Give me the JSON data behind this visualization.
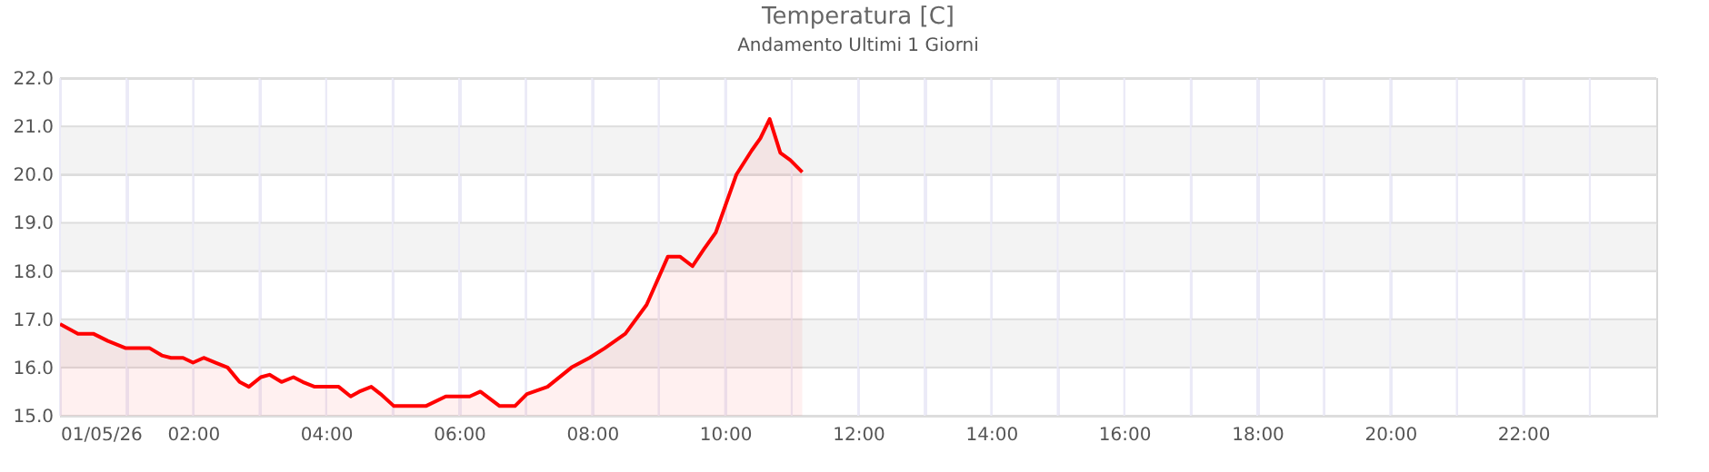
{
  "chart_data": {
    "type": "area",
    "title": "Temperatura [C]",
    "subtitle": "Andamento Ultimi 1 Giorni",
    "x": [
      0,
      0.27,
      0.5,
      0.72,
      0.99,
      1.35,
      1.53,
      1.67,
      1.85,
      2.0,
      2.16,
      2.34,
      2.52,
      2.7,
      2.84,
      3.02,
      3.15,
      3.33,
      3.51,
      3.65,
      3.83,
      4.19,
      4.37,
      4.5,
      4.68,
      4.82,
      5.02,
      5.5,
      5.8,
      6.16,
      6.32,
      6.61,
      6.84,
      7.02,
      7.33,
      7.69,
      7.96,
      8.19,
      8.5,
      8.82,
      9.14,
      9.32,
      9.51,
      9.68,
      9.86,
      10.17,
      10.4,
      10.53,
      10.67,
      10.83,
      10.98,
      11.16
    ],
    "series": [
      {
        "color": "#ff0000",
        "values": [
          16.9,
          16.7,
          16.7,
          16.55,
          16.4,
          16.4,
          16.25,
          16.2,
          16.2,
          16.1,
          16.2,
          16.1,
          16.0,
          15.7,
          15.6,
          15.8,
          15.85,
          15.7,
          15.8,
          15.7,
          15.6,
          15.6,
          15.4,
          15.5,
          15.6,
          15.45,
          15.2,
          15.2,
          15.4,
          15.4,
          15.5,
          15.2,
          15.2,
          15.45,
          15.6,
          16.0,
          16.2,
          16.4,
          16.7,
          17.3,
          18.3,
          18.3,
          18.1,
          18.45,
          18.8,
          20.0,
          20.5,
          20.75,
          21.15,
          20.45,
          20.3,
          20.05
        ]
      }
    ],
    "xlim": [
      0,
      24
    ],
    "xticks": [
      {
        "value": 0,
        "label": "01/05/26"
      },
      {
        "value": 1,
        "label": null
      },
      {
        "value": 2,
        "label": "02:00"
      },
      {
        "value": 3,
        "label": null
      },
      {
        "value": 4,
        "label": "04:00"
      },
      {
        "value": 5,
        "label": null
      },
      {
        "value": 6,
        "label": "06:00"
      },
      {
        "value": 7,
        "label": null
      },
      {
        "value": 8,
        "label": "08:00"
      },
      {
        "value": 9,
        "label": null
      },
      {
        "value": 10,
        "label": "10:00"
      },
      {
        "value": 11,
        "label": null
      },
      {
        "value": 12,
        "label": "12:00"
      },
      {
        "value": 13,
        "label": null
      },
      {
        "value": 14,
        "label": "14:00"
      },
      {
        "value": 15,
        "label": null
      },
      {
        "value": 16,
        "label": "16:00"
      },
      {
        "value": 17,
        "label": null
      },
      {
        "value": 18,
        "label": "18:00"
      },
      {
        "value": 19,
        "label": null
      },
      {
        "value": 20,
        "label": "20:00"
      },
      {
        "value": 21,
        "label": null
      },
      {
        "value": 22,
        "label": "22:00"
      },
      {
        "value": 23,
        "label": null
      }
    ],
    "ylim": [
      15,
      22
    ],
    "yticks": [
      {
        "value": 15,
        "label": "15.0"
      },
      {
        "value": 16,
        "label": "16.0"
      },
      {
        "value": 17,
        "label": "17.0"
      },
      {
        "value": 18,
        "label": "18.0"
      },
      {
        "value": 19,
        "label": "19.0"
      },
      {
        "value": 20,
        "label": "20.0"
      },
      {
        "value": 21,
        "label": "21.0"
      },
      {
        "value": 22,
        "label": "22.0"
      }
    ],
    "bands": [
      {
        "axis": "y",
        "from": 16,
        "to": 17,
        "color": "#f3f3f3"
      },
      {
        "axis": "y",
        "from": 18,
        "to": 19,
        "color": "#f3f3f3"
      },
      {
        "axis": "y",
        "from": 20,
        "to": 21,
        "color": "#f3f3f3"
      }
    ],
    "grid": true
  }
}
